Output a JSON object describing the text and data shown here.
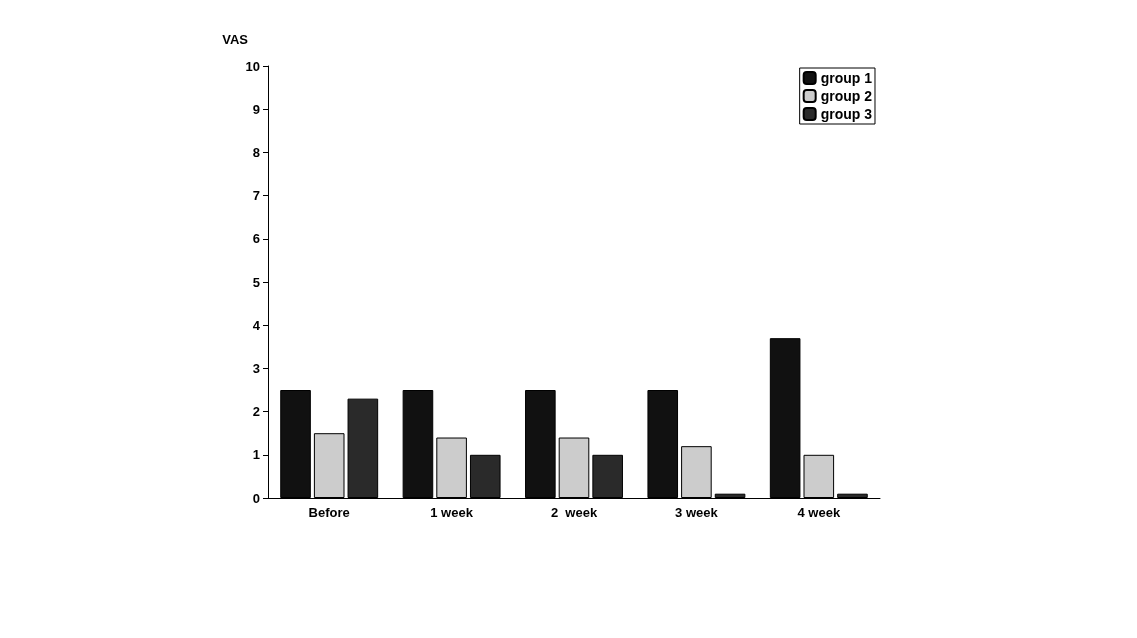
{
  "chart_data": {
    "type": "bar",
    "ylabel": "VAS",
    "categories": [
      "Before",
      "1 week",
      "2  week",
      "3 week",
      "4 week"
    ],
    "series": [
      {
        "name": "group 1",
        "color": "#111111",
        "values": [
          2.5,
          2.5,
          2.5,
          2.5,
          3.7
        ]
      },
      {
        "name": "group 2",
        "color": "#cccccc",
        "values": [
          1.5,
          1.4,
          1.4,
          1.2,
          1.0
        ]
      },
      {
        "name": "group 3",
        "color": "#2a2a2a",
        "values": [
          2.3,
          1.0,
          1.0,
          0.1,
          0.1
        ]
      }
    ],
    "ylim": [
      0,
      10
    ],
    "yticks": [
      0,
      1,
      2,
      3,
      4,
      5,
      6,
      7,
      8,
      9,
      10
    ],
    "grid": false,
    "legend": "top right"
  }
}
